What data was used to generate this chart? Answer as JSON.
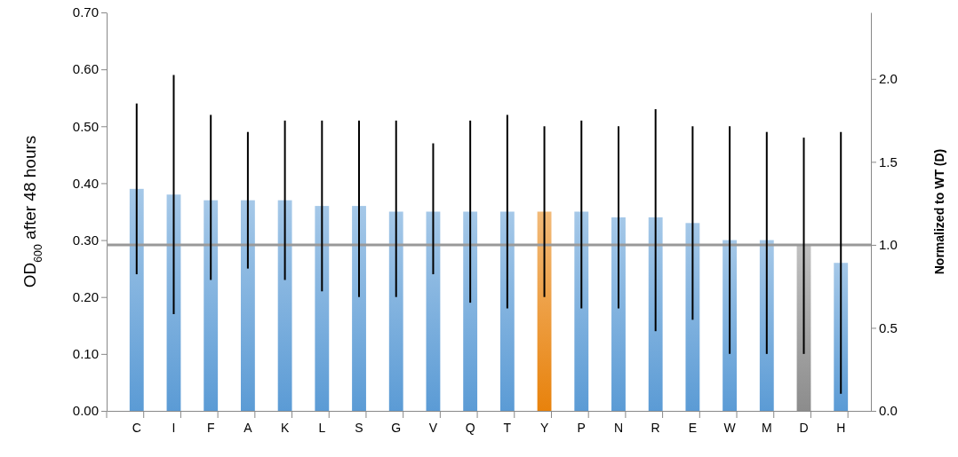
{
  "chart_data": {
    "type": "bar",
    "categories": [
      "C",
      "I",
      "F",
      "A",
      "K",
      "L",
      "S",
      "G",
      "V",
      "Q",
      "T",
      "Y",
      "P",
      "N",
      "R",
      "E",
      "W",
      "M",
      "D",
      "H"
    ],
    "values": [
      0.39,
      0.38,
      0.37,
      0.37,
      0.37,
      0.36,
      0.36,
      0.35,
      0.35,
      0.35,
      0.35,
      0.35,
      0.35,
      0.34,
      0.34,
      0.33,
      0.3,
      0.3,
      0.29,
      0.26
    ],
    "colors": [
      "#5b9bd5",
      "#5b9bd5",
      "#5b9bd5",
      "#5b9bd5",
      "#5b9bd5",
      "#5b9bd5",
      "#5b9bd5",
      "#5b9bd5",
      "#5b9bd5",
      "#5b9bd5",
      "#5b9bd5",
      "#e8820c",
      "#5b9bd5",
      "#5b9bd5",
      "#5b9bd5",
      "#5b9bd5",
      "#5b9bd5",
      "#5b9bd5",
      "#8c8c8c",
      "#5b9bd5"
    ],
    "errors": [
      [
        0.24,
        0.54
      ],
      [
        0.17,
        0.59
      ],
      [
        0.23,
        0.52
      ],
      [
        0.25,
        0.49
      ],
      [
        0.23,
        0.51
      ],
      [
        0.21,
        0.51
      ],
      [
        0.2,
        0.51
      ],
      [
        0.2,
        0.51
      ],
      [
        0.24,
        0.47
      ],
      [
        0.19,
        0.51
      ],
      [
        0.18,
        0.52
      ],
      [
        0.2,
        0.5
      ],
      [
        0.18,
        0.51
      ],
      [
        0.18,
        0.5
      ],
      [
        0.14,
        0.53
      ],
      [
        0.16,
        0.5
      ],
      [
        0.1,
        0.5
      ],
      [
        0.1,
        0.49
      ],
      [
        0.1,
        0.48
      ],
      [
        0.03,
        0.49
      ]
    ],
    "ylabel": "OD$_{600}$ after 48 hours",
    "y2label": "Normalized to WT (D)",
    "ylim": [
      0,
      0.7
    ],
    "yticks": [
      {
        "value": 0,
        "label": "0.00"
      },
      {
        "value": 0.1,
        "label": "0.10"
      },
      {
        "value": 0.2,
        "label": "0.20"
      },
      {
        "value": 0.3,
        "label": "0.30"
      },
      {
        "value": 0.4,
        "label": "0.40"
      },
      {
        "value": 0.5,
        "label": "0.50"
      },
      {
        "value": 0.6,
        "label": "0.60"
      },
      {
        "value": 0.7,
        "label": "0.70"
      }
    ],
    "y2lim": [
      0,
      2.4
    ],
    "y2ticks": [
      {
        "value": 0,
        "label": "0.0"
      },
      {
        "value": 0.5,
        "label": "0.5"
      },
      {
        "value": 1,
        "label": "1.0"
      },
      {
        "value": 1.5,
        "label": "1.5"
      },
      {
        "value": 2,
        "label": "2.0"
      }
    ],
    "ref_lines": [
      {
        "axis": "y2",
        "value": 1,
        "color": "#999999"
      }
    ],
    "grid": false
  }
}
